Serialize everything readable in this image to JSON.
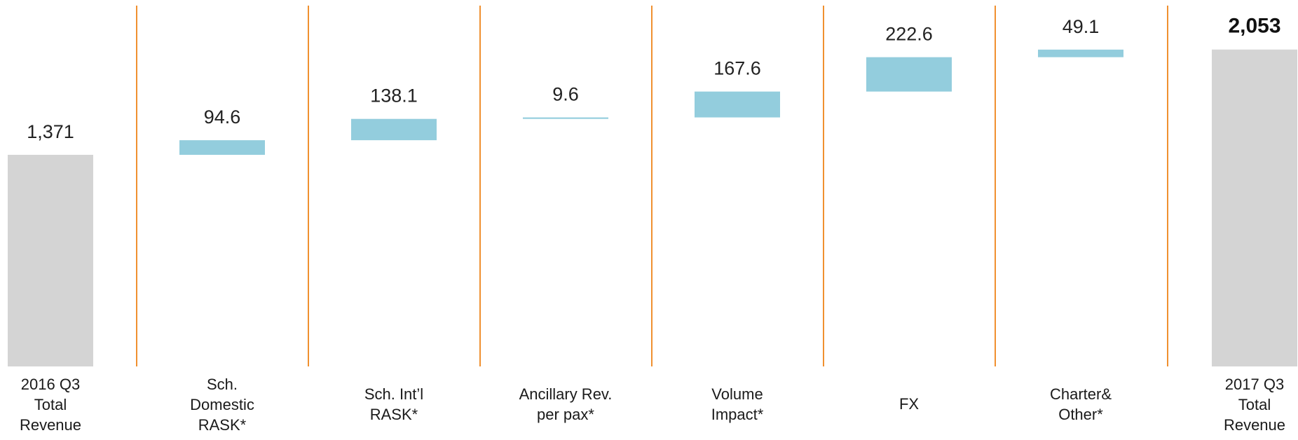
{
  "colors": {
    "total_bar": "#d4d4d4",
    "delta_bar": "#93cddd",
    "separator": "#f0902f",
    "value_text": "#222222"
  },
  "chart_data": {
    "type": "waterfall",
    "categories": [
      "2016 Q3\nTotal\nRevenue",
      "Sch.\nDomestic\nRASK*",
      "Sch. Int’l\nRASK*",
      "Ancillary Rev.\nper pax*",
      "Volume\nImpact*",
      "FX",
      "Charter&\nOther*",
      "2017 Q3\nTotal\nRevenue"
    ],
    "values": [
      1371,
      94.6,
      138.1,
      9.6,
      167.6,
      222.6,
      49.1,
      2053
    ],
    "value_labels": [
      "1,371",
      "94.6",
      "138.1",
      "9.6",
      "167.6",
      "222.6",
      "49.1",
      "2,053"
    ],
    "bar_kinds": [
      "total",
      "delta",
      "delta",
      "delta",
      "delta",
      "delta",
      "delta",
      "total"
    ],
    "bold_label_index": 7,
    "ylim": [
      0,
      2200
    ],
    "grid": false,
    "separators": true
  }
}
